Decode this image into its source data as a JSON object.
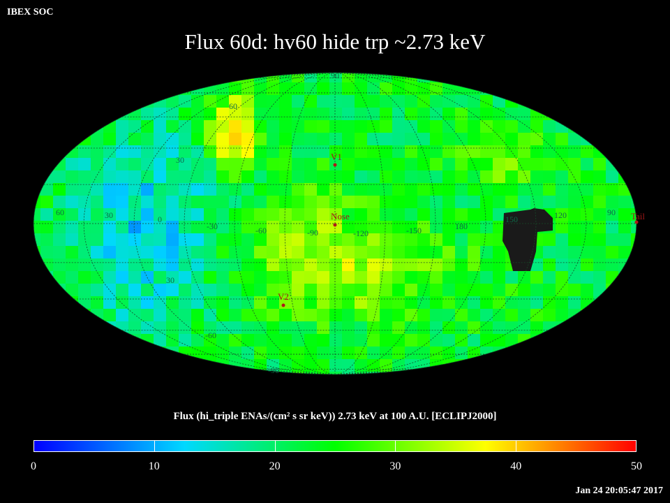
{
  "header": {
    "corner_label": "IBEX SOC",
    "title": "Flux   60d: hv60 hide trp ~2.73 keV"
  },
  "map": {
    "projection": "aitoff (hammer) all-sky",
    "longitude_grid_labels": [
      "60",
      "30",
      "0",
      "-30",
      "-60",
      "-90",
      "-120",
      "-150",
      "180",
      "150",
      "120",
      "90"
    ],
    "latitude_grid_labels": [
      "90",
      "60",
      "30",
      "30",
      "-60",
      "-90"
    ],
    "markers": [
      {
        "name": "V1",
        "label": "V1"
      },
      {
        "name": "Nose",
        "label": "Nose"
      },
      {
        "name": "V2",
        "label": "V2"
      },
      {
        "name": "Tail",
        "label": "Tail"
      }
    ],
    "masked_region_color": "#1a1a1a"
  },
  "colorbar": {
    "title": "Flux (hi_triple ENAs/(cm² s sr keV))  2.73 keV at 100 A.U. [ECLIPJ2000]",
    "ticks": [
      "0",
      "10",
      "20",
      "30",
      "40",
      "50"
    ],
    "range": [
      0,
      50
    ],
    "colors": [
      "#0000ff",
      "#00d8ff",
      "#00ff00",
      "#ffff00",
      "#ff0000"
    ]
  },
  "footer": {
    "timestamp": "Jan 24 20:05:47 2017"
  }
}
